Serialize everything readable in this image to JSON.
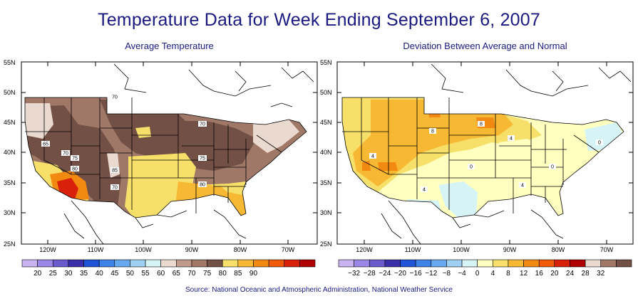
{
  "title": "Temperature Data for Week Ending September 6, 2007",
  "source": "Source:  National Oceanic and Atmospheric Administration, National Weather Service",
  "left_map": {
    "title": "Average Temperature",
    "lat_labels": [
      "55N",
      "50N",
      "45N",
      "40N",
      "35N",
      "30N",
      "25N"
    ],
    "lon_labels": [
      "120W",
      "110W",
      "100W",
      "90W",
      "80W",
      "70W"
    ],
    "contour_labels": [
      "70",
      "70",
      "65",
      "70",
      "75",
      "80",
      "85",
      "70",
      "75",
      "80"
    ],
    "colorbar": {
      "labels": [
        "20",
        "25",
        "30",
        "35",
        "40",
        "45",
        "50",
        "55",
        "60",
        "65",
        "70",
        "75",
        "80",
        "85",
        "90"
      ],
      "colors": [
        "#c7b4f0",
        "#9a86e6",
        "#6a5acd",
        "#3a2fa8",
        "#1f54d6",
        "#3d82e8",
        "#65a8ee",
        "#9fd0f4",
        "#d6f3f6",
        "#ead9cf",
        "#c09a8a",
        "#a07868",
        "#735045",
        "#f7e06a",
        "#f7b834",
        "#f28a12",
        "#f05a0a",
        "#d9200a",
        "#b00000"
      ]
    }
  },
  "right_map": {
    "title": "Deviation Between Average and Normal",
    "lat_labels": [
      "55N",
      "50N",
      "45N",
      "40N",
      "35N",
      "30N",
      "25N"
    ],
    "lon_labels": [
      "120W",
      "110W",
      "100W",
      "90W",
      "80W",
      "70W"
    ],
    "contour_labels": [
      "8",
      "8",
      "4",
      "4",
      "0",
      "4",
      "0",
      "4",
      "0"
    ],
    "colorbar": {
      "labels": [
        "−32",
        "−28",
        "−24",
        "−20",
        "−16",
        "−12",
        "−8",
        "−4",
        "0",
        "4",
        "8",
        "12",
        "16",
        "20",
        "24",
        "28",
        "32"
      ],
      "colors": [
        "#c7b4f0",
        "#9a86e6",
        "#6a5acd",
        "#3a2fa8",
        "#1f54d6",
        "#3d82e8",
        "#65a8ee",
        "#9fd0f4",
        "#d6f3f6",
        "#ffffc0",
        "#f7e06a",
        "#f7b834",
        "#f28a12",
        "#f05a0a",
        "#d9200a",
        "#b00000",
        "#ead9cf",
        "#a07868",
        "#735045"
      ]
    }
  }
}
